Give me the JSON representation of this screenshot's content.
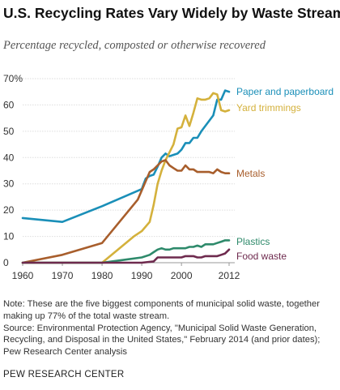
{
  "header": {
    "title": "U.S. Recycling Rates Vary Widely by Waste Stream",
    "subtitle": "Percentage recycled, composted or otherwise recovered"
  },
  "chart_data": {
    "type": "line",
    "title": "U.S. Recycling Rates Vary Widely by Waste Stream",
    "subtitle": "Percentage recycled, composted or otherwise recovered",
    "xlabel": "",
    "ylabel": "",
    "xlim": [
      1960,
      2012
    ],
    "ylim": [
      0,
      70
    ],
    "x_ticks": [
      "1960",
      "1970",
      "1980",
      "1990",
      "2000",
      "2012"
    ],
    "y_ticks": [
      "0",
      "10",
      "20",
      "30",
      "40",
      "50",
      "60",
      "70%"
    ],
    "grid": true,
    "legend": "direct labels at line ends",
    "series": [
      {
        "name": "Paper and paperboard",
        "color": "#1a8fb8",
        "points": [
          [
            1960,
            17
          ],
          [
            1970,
            15.5
          ],
          [
            1980,
            21.5
          ],
          [
            1990,
            28
          ],
          [
            1991,
            32
          ],
          [
            1992,
            33
          ],
          [
            1993,
            33.5
          ],
          [
            1994,
            36.5
          ],
          [
            1995,
            40
          ],
          [
            1996,
            41.5
          ],
          [
            1997,
            40.5
          ],
          [
            1998,
            41
          ],
          [
            1999,
            41.5
          ],
          [
            2000,
            43
          ],
          [
            2001,
            45.5
          ],
          [
            2002,
            45.5
          ],
          [
            2003,
            47.5
          ],
          [
            2004,
            47.5
          ],
          [
            2005,
            50
          ],
          [
            2006,
            52
          ],
          [
            2007,
            54
          ],
          [
            2008,
            56
          ],
          [
            2009,
            62
          ],
          [
            2010,
            62
          ],
          [
            2011,
            65.5
          ],
          [
            2012,
            65
          ]
        ]
      },
      {
        "name": "Yard trimmings",
        "color": "#d4b13c",
        "points": [
          [
            1960,
            0
          ],
          [
            1970,
            0
          ],
          [
            1980,
            0
          ],
          [
            1988,
            10
          ],
          [
            1990,
            12
          ],
          [
            1992,
            15.5
          ],
          [
            1993,
            22
          ],
          [
            1994,
            30
          ],
          [
            1995,
            35
          ],
          [
            1996,
            39
          ],
          [
            1997,
            42
          ],
          [
            1998,
            45
          ],
          [
            1999,
            51
          ],
          [
            2000,
            51.5
          ],
          [
            2001,
            56
          ],
          [
            2002,
            52
          ],
          [
            2003,
            57
          ],
          [
            2004,
            62.5
          ],
          [
            2005,
            62
          ],
          [
            2006,
            62
          ],
          [
            2007,
            62.5
          ],
          [
            2008,
            64.5
          ],
          [
            2009,
            64
          ],
          [
            2010,
            58
          ],
          [
            2011,
            57.5
          ],
          [
            2012,
            58
          ]
        ]
      },
      {
        "name": "Metals",
        "color": "#a85e2c",
        "points": [
          [
            1960,
            0
          ],
          [
            1970,
            3
          ],
          [
            1980,
            7.5
          ],
          [
            1989,
            24
          ],
          [
            1990,
            27.5
          ],
          [
            1991,
            31
          ],
          [
            1992,
            34.5
          ],
          [
            1993,
            35.5
          ],
          [
            1994,
            37
          ],
          [
            1995,
            38.5
          ],
          [
            1996,
            39
          ],
          [
            1997,
            37
          ],
          [
            1998,
            36
          ],
          [
            1999,
            35
          ],
          [
            2000,
            35
          ],
          [
            2001,
            37
          ],
          [
            2002,
            35.5
          ],
          [
            2003,
            35.5
          ],
          [
            2004,
            34.5
          ],
          [
            2005,
            34.5
          ],
          [
            2006,
            34.5
          ],
          [
            2007,
            34.5
          ],
          [
            2008,
            34
          ],
          [
            2009,
            35.5
          ],
          [
            2010,
            34.5
          ],
          [
            2011,
            34
          ],
          [
            2012,
            34
          ]
        ]
      },
      {
        "name": "Plastics",
        "color": "#2e8a6b",
        "points": [
          [
            1960,
            0
          ],
          [
            1970,
            0
          ],
          [
            1980,
            0
          ],
          [
            1985,
            1
          ],
          [
            1990,
            2
          ],
          [
            1992,
            3
          ],
          [
            1993,
            4
          ],
          [
            1994,
            5
          ],
          [
            1995,
            5.5
          ],
          [
            1996,
            5
          ],
          [
            1997,
            5
          ],
          [
            1998,
            5.5
          ],
          [
            1999,
            5.5
          ],
          [
            2000,
            5.5
          ],
          [
            2001,
            5.5
          ],
          [
            2002,
            6
          ],
          [
            2003,
            6
          ],
          [
            2004,
            6.5
          ],
          [
            2005,
            6
          ],
          [
            2006,
            7
          ],
          [
            2007,
            7
          ],
          [
            2008,
            7
          ],
          [
            2009,
            7.5
          ],
          [
            2010,
            8
          ],
          [
            2011,
            8.5
          ],
          [
            2012,
            8.5
          ]
        ]
      },
      {
        "name": "Food waste",
        "color": "#6e2a4e",
        "points": [
          [
            1960,
            0
          ],
          [
            1970,
            0
          ],
          [
            1980,
            0
          ],
          [
            1990,
            0
          ],
          [
            1993,
            0.5
          ],
          [
            1994,
            2
          ],
          [
            1995,
            2
          ],
          [
            1996,
            2
          ],
          [
            1997,
            2
          ],
          [
            1998,
            2
          ],
          [
            1999,
            2
          ],
          [
            2000,
            2
          ],
          [
            2001,
            2.5
          ],
          [
            2002,
            2.5
          ],
          [
            2003,
            2.5
          ],
          [
            2004,
            2
          ],
          [
            2005,
            2
          ],
          [
            2006,
            2.5
          ],
          [
            2007,
            2.5
          ],
          [
            2008,
            2.5
          ],
          [
            2009,
            2.5
          ],
          [
            2010,
            3
          ],
          [
            2011,
            3.5
          ],
          [
            2012,
            5
          ]
        ]
      }
    ]
  },
  "notes": [
    "Note: These are the five biggest components of municipal solid waste, together",
    "making up 77% of the total waste stream.",
    "Source: Environmental Protection Agency, \"Municipal Solid Waste Generation,",
    "Recycling, and Disposal in the United States,\" February 2014 (and prior dates);",
    "Pew Research Center analysis"
  ],
  "brand": "PEW RESEARCH CENTER"
}
